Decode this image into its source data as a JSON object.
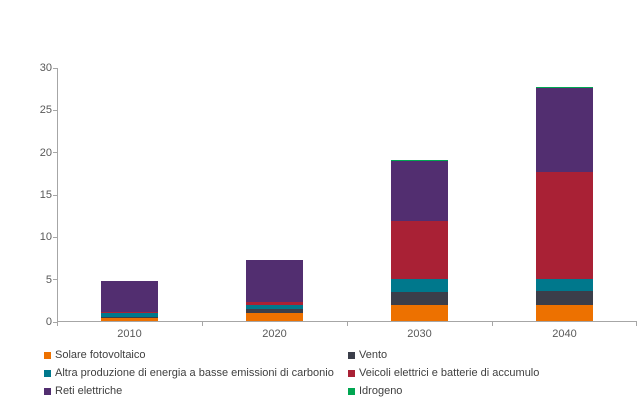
{
  "page": {
    "background": "#ffffff",
    "title": ""
  },
  "axis": {
    "label_color": "#595959",
    "line_color": "#a6a6a6"
  },
  "chart_data": {
    "type": "bar",
    "stacked": true,
    "title": "",
    "xlabel": "",
    "ylabel": "",
    "categories": [
      "2010",
      "2020",
      "2030",
      "2040"
    ],
    "series": [
      {
        "name": "Solare fotovoltaico",
        "color": "#ED7100",
        "values": [
          0.3,
          1.0,
          1.9,
          1.9
        ]
      },
      {
        "name": "Vento",
        "color": "#3B3E4A",
        "values": [
          0.2,
          0.45,
          1.55,
          1.6
        ]
      },
      {
        "name": "Altra produzione di energia a basse emissioni di carbonio",
        "color": "#00788C",
        "values": [
          0.4,
          0.45,
          1.5,
          1.45
        ]
      },
      {
        "name": "Veicoli elettrici e batterie di accumulo",
        "color": "#A92135",
        "values": [
          0.15,
          0.4,
          6.9,
          12.6
        ]
      },
      {
        "name": "Reti elettriche",
        "color": "#522E70",
        "values": [
          3.7,
          4.9,
          7.1,
          10.0
        ]
      },
      {
        "name": "Idrogeno",
        "color": "#00A651",
        "values": [
          0,
          0,
          0.05,
          0.15
        ]
      }
    ],
    "totals": [
      4.75,
      7.2,
      19.0,
      27.7
    ],
    "ylim": [
      0,
      30
    ],
    "yticks": [
      0,
      5,
      10,
      15,
      20,
      25,
      30
    ],
    "grid": false,
    "legend_position": "bottom, two columns"
  },
  "legend": {
    "columns": [
      [
        "Solare fotovoltaico",
        "Altra produzione di energia a basse emissioni di carbonio",
        "Reti elettriche"
      ],
      [
        "Vento",
        "Veicoli elettrici e batterie di accumulo",
        "Idrogeno"
      ]
    ]
  }
}
